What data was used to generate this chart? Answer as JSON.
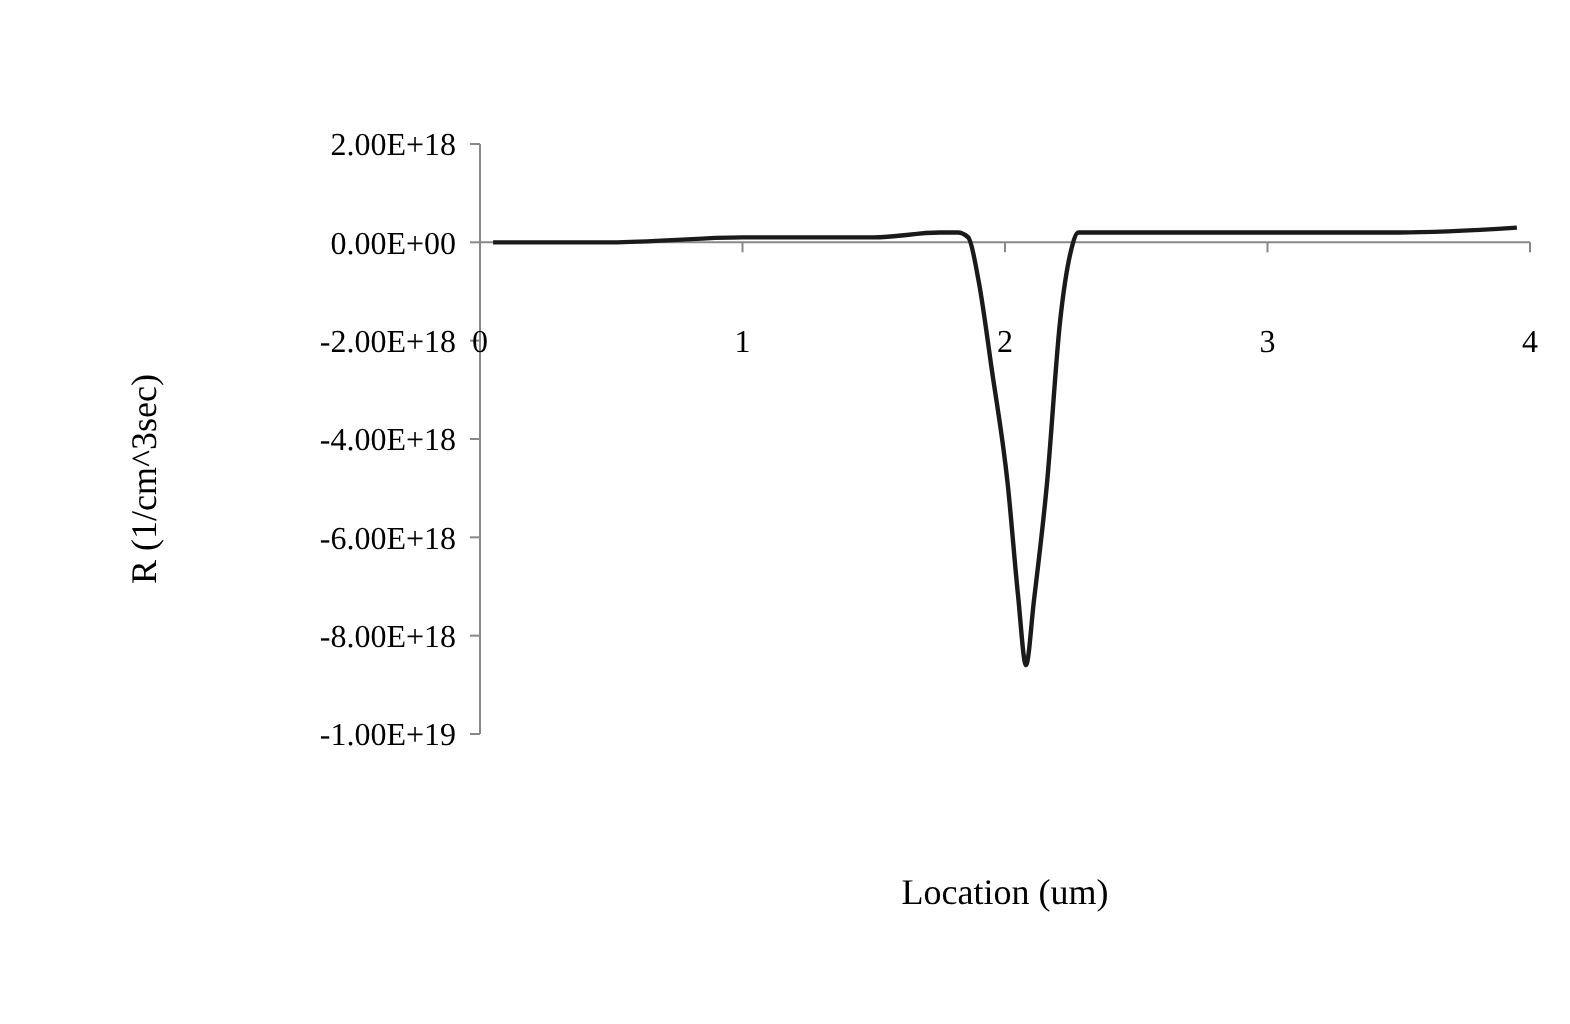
{
  "chart_data": {
    "type": "line",
    "xlabel": "Location (um)",
    "ylabel": "R (1/cm^3sec)",
    "x": [
      0.05,
      0.5,
      1,
      1.5,
      1.75,
      1.82,
      1.86,
      1.9,
      1.95,
      2.01,
      2.05,
      2.08,
      2.11,
      2.16,
      2.21,
      2.25,
      2.28,
      2.35,
      3,
      3.5,
      3.95
    ],
    "series": [
      {
        "color": "#1a1a1a",
        "values": [
          0,
          0,
          1e+17,
          1e+17,
          2e+17,
          2e+17,
          1e+17,
          -8e+17,
          -2.6e+18,
          -4.9e+18,
          -7.2e+18,
          -8.6e+18,
          -7.3e+18,
          -4.9e+18,
          -1.6e+18,
          -2e+17,
          2e+17,
          2e+17,
          2e+17,
          2e+17,
          3e+17
        ]
      }
    ],
    "xlim": [
      0,
      4
    ],
    "xticks": [
      0,
      1,
      2,
      3,
      4
    ],
    "ylim": [
      -1e+19,
      2e+18
    ],
    "yticks": [
      {
        "value": 2e+18,
        "label": "2.00E+18"
      },
      {
        "value": 0,
        "label": "0.00E+00"
      },
      {
        "value": -2e+18,
        "label": "-2.00E+18"
      },
      {
        "value": -4e+18,
        "label": "-4.00E+18"
      },
      {
        "value": -6e+18,
        "label": "-6.00E+18"
      },
      {
        "value": -8e+18,
        "label": "-8.00E+18"
      },
      {
        "value": -1e+19,
        "label": "-1.00E+19"
      }
    ],
    "marker": "none",
    "line_style": "solid"
  }
}
